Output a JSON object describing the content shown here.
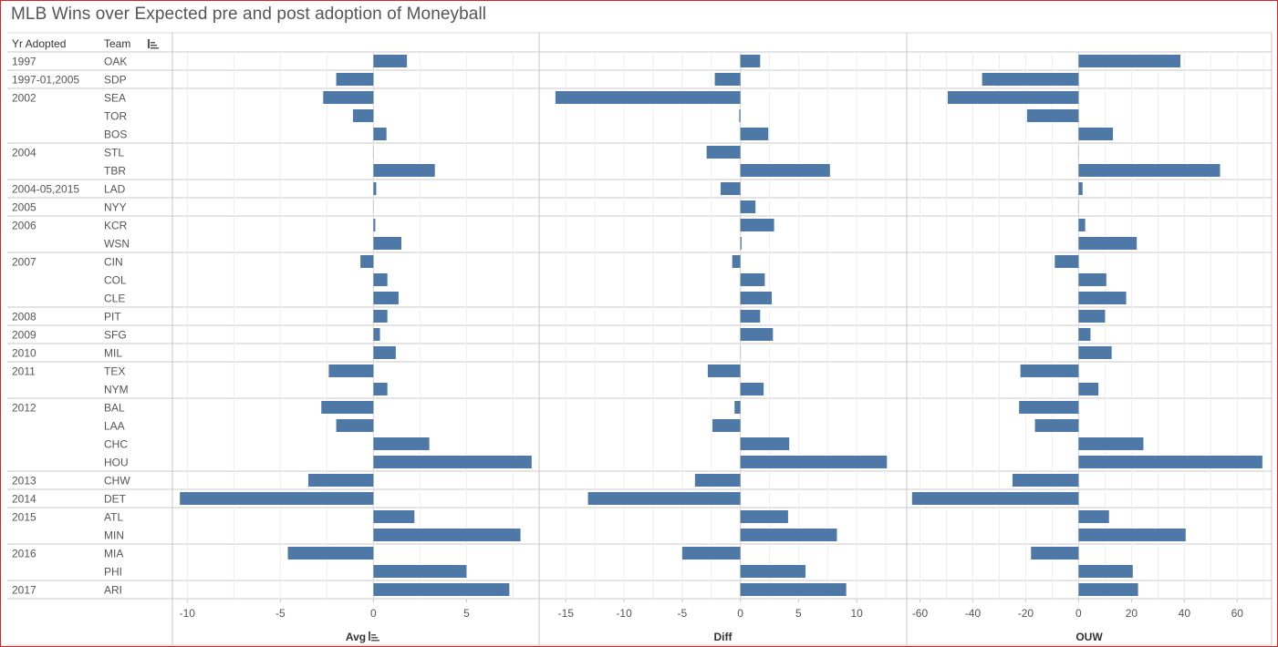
{
  "title": "MLB Wins over Expected pre and post adoption of Moneyball",
  "headers": {
    "year": "Yr Adopted",
    "team": "Team",
    "sort_icon": "sort-icon"
  },
  "rows": [
    {
      "year": "1997",
      "team": "OAK"
    },
    {
      "year": "1997-01,2005",
      "team": "SDP"
    },
    {
      "year": "2002",
      "team": "SEA"
    },
    {
      "year": "",
      "team": "TOR"
    },
    {
      "year": "",
      "team": "BOS"
    },
    {
      "year": "2004",
      "team": "STL"
    },
    {
      "year": "",
      "team": "TBR"
    },
    {
      "year": "2004-05,2015",
      "team": "LAD"
    },
    {
      "year": "2005",
      "team": "NYY"
    },
    {
      "year": "2006",
      "team": "KCR"
    },
    {
      "year": "",
      "team": "WSN"
    },
    {
      "year": "2007",
      "team": "CIN"
    },
    {
      "year": "",
      "team": "COL"
    },
    {
      "year": "",
      "team": "CLE"
    },
    {
      "year": "2008",
      "team": "PIT"
    },
    {
      "year": "2009",
      "team": "SFG"
    },
    {
      "year": "2010",
      "team": "MIL"
    },
    {
      "year": "2011",
      "team": "TEX"
    },
    {
      "year": "",
      "team": "NYM"
    },
    {
      "year": "2012",
      "team": "BAL"
    },
    {
      "year": "",
      "team": "LAA"
    },
    {
      "year": "",
      "team": "CHC"
    },
    {
      "year": "",
      "team": "HOU"
    },
    {
      "year": "2013",
      "team": "CHW"
    },
    {
      "year": "2014",
      "team": "DET"
    },
    {
      "year": "2015",
      "team": "ATL"
    },
    {
      "year": "",
      "team": "MIN"
    },
    {
      "year": "2016",
      "team": "MIA"
    },
    {
      "year": "",
      "team": "PHI"
    },
    {
      "year": "2017",
      "team": "ARI"
    }
  ],
  "colors": {
    "bar": "#4e79a7",
    "grid": "#c8c8c8",
    "text": "#555555"
  },
  "chart_data": [
    {
      "type": "bar",
      "orientation": "horizontal",
      "xlabel": "Avg",
      "xlim": [
        -10.8,
        8.9
      ],
      "ticks": [
        -10,
        -5,
        0,
        5
      ],
      "categories": [
        "OAK",
        "SDP",
        "SEA",
        "TOR",
        "BOS",
        "STL",
        "TBR",
        "LAD",
        "NYY",
        "KCR",
        "WSN",
        "CIN",
        "COL",
        "CLE",
        "PIT",
        "SFG",
        "MIL",
        "TEX",
        "NYM",
        "BAL",
        "LAA",
        "CHC",
        "HOU",
        "CHW",
        "DET",
        "ATL",
        "MIN",
        "MIA",
        "PHI",
        "ARI"
      ],
      "values": [
        1.8,
        -2.0,
        -2.7,
        -1.1,
        0.7,
        0.0,
        3.3,
        0.15,
        0.0,
        0.1,
        1.5,
        -0.7,
        0.75,
        1.35,
        0.75,
        0.35,
        1.2,
        -2.4,
        0.75,
        -2.8,
        -2.0,
        3.0,
        8.5,
        -3.5,
        -10.4,
        2.2,
        7.9,
        -4.6,
        5.0,
        7.3
      ]
    },
    {
      "type": "bar",
      "orientation": "horizontal",
      "xlabel": "Diff",
      "xlim": [
        -17.3,
        14.3
      ],
      "ticks": [
        -15,
        -10,
        -5,
        0,
        5,
        10
      ],
      "categories": [
        "OAK",
        "SDP",
        "SEA",
        "TOR",
        "BOS",
        "STL",
        "TBR",
        "LAD",
        "NYY",
        "KCR",
        "WSN",
        "CIN",
        "COL",
        "CLE",
        "PIT",
        "SFG",
        "MIL",
        "TEX",
        "NYM",
        "BAL",
        "LAA",
        "CHC",
        "HOU",
        "CHW",
        "DET",
        "ATL",
        "MIN",
        "MIA",
        "PHI",
        "ARI"
      ],
      "values": [
        1.7,
        -2.2,
        -15.9,
        -0.1,
        2.4,
        -2.9,
        7.7,
        -1.7,
        1.3,
        2.9,
        0.1,
        -0.7,
        2.1,
        2.7,
        1.7,
        2.8,
        0.0,
        -2.8,
        2.0,
        -0.5,
        -2.4,
        4.2,
        12.6,
        -3.9,
        -13.1,
        4.1,
        8.3,
        -5.0,
        5.6,
        9.1
      ]
    },
    {
      "type": "bar",
      "orientation": "horizontal",
      "xlabel": "OUW",
      "xlim": [
        -65,
        73
      ],
      "ticks": [
        -60,
        -40,
        -20,
        0,
        20,
        40,
        60
      ],
      "categories": [
        "OAK",
        "SDP",
        "SEA",
        "TOR",
        "BOS",
        "STL",
        "TBR",
        "LAD",
        "NYY",
        "KCR",
        "WSN",
        "CIN",
        "COL",
        "CLE",
        "PIT",
        "SFG",
        "MIL",
        "TEX",
        "NYM",
        "BAL",
        "LAA",
        "CHC",
        "HOU",
        "CHW",
        "DET",
        "ATL",
        "MIN",
        "MIA",
        "PHI",
        "ARI"
      ],
      "values": [
        38.5,
        -36.5,
        -49.5,
        -19.5,
        13.0,
        0.0,
        53.5,
        1.5,
        0.0,
        2.5,
        22.0,
        -9.0,
        10.5,
        18.0,
        10.0,
        4.5,
        12.5,
        -22.0,
        7.5,
        -22.5,
        -16.5,
        24.5,
        69.5,
        -25.0,
        -63.0,
        11.5,
        40.5,
        -18.0,
        20.5,
        22.5
      ]
    }
  ]
}
